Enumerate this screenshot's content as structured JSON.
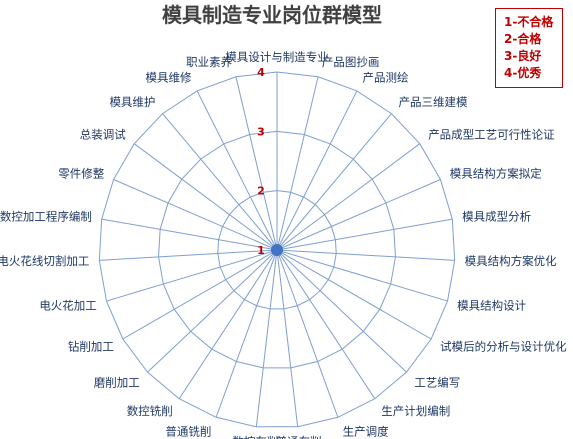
{
  "chart_data": {
    "type": "radar",
    "title": "模具制造专业岗位群模型",
    "axes": [
      "模具设计与制造专业",
      "产品图抄画",
      "产品测绘",
      "产品三维建模",
      "产品成型工艺可行性论证",
      "模具结构方案拟定",
      "模具成型分析",
      "模具结构方案优化",
      "模具结构设计",
      "试模后的分析与设计优化",
      "工艺编写",
      "生产计划编制",
      "生产调度",
      "普通车削",
      "数控车削",
      "普通铣削",
      "数控铣削",
      "磨削加工",
      "钻削加工",
      "电火花加工",
      "电火花线切割加工",
      "数控加工程序编制",
      "零件修整",
      "总装调试",
      "模具维护",
      "模具维修",
      "职业素养"
    ],
    "ticks": [
      "1",
      "2",
      "3",
      "4"
    ],
    "rlim": [
      1,
      4
    ],
    "grid": true,
    "legend_position": "top-right",
    "series": [
      {
        "values": [
          1,
          1,
          1,
          1,
          1,
          1,
          1,
          1,
          1,
          1,
          1,
          1,
          1,
          1,
          1,
          1,
          1,
          1,
          1,
          1,
          1,
          1,
          1,
          1,
          1,
          1,
          1
        ]
      }
    ],
    "colors": {
      "grid": "#7f9fd0",
      "series": "#4472c4",
      "title": "#404040",
      "ticks": "#c00000",
      "labels": "#1f3864"
    }
  },
  "legend": {
    "items": [
      "1-不合格",
      "2-合格",
      "3-良好",
      "4-优秀"
    ]
  }
}
